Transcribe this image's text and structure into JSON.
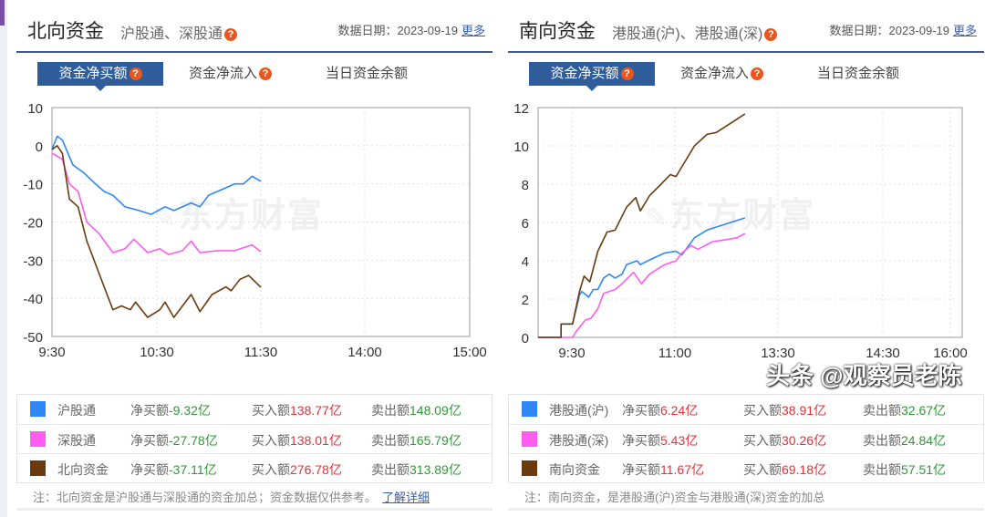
{
  "north": {
    "title": "北向资金",
    "subtitle": "沪股通、深股通",
    "date_label": "数据日期：",
    "date": "2023-09-19",
    "more": "更多",
    "tabs": [
      "资金净买额",
      "资金净流入",
      "当日资金余额"
    ],
    "legend": [
      {
        "name": "沪股通",
        "color": "#2f86f6",
        "net_label": "净买额",
        "net": "-9.32亿",
        "buy_label": "买入额",
        "buy": "138.77亿",
        "sell_label": "卖出额",
        "sell": "148.09亿",
        "net_positive": false
      },
      {
        "name": "深股通",
        "color": "#ff5cf0",
        "net_label": "净买额",
        "net": "-27.78亿",
        "buy_label": "买入额",
        "buy": "138.01亿",
        "sell_label": "卖出额",
        "sell": "165.79亿",
        "net_positive": false
      },
      {
        "name": "北向资金",
        "color": "#6b3a0c",
        "net_label": "净买额",
        "net": "-37.11亿",
        "buy_label": "买入额",
        "buy": "276.78亿",
        "sell_label": "卖出额",
        "sell": "313.89亿",
        "net_positive": false
      }
    ],
    "note": "注：北向资金是沪股通与深股通的资金加总；资金数据仅供参考。",
    "note_link": "了解详细",
    "watermark": "东方财富"
  },
  "south": {
    "title": "南向资金",
    "subtitle": "港股通(沪)、港股通(深)",
    "date_label": "数据日期：",
    "date": "2023-09-19",
    "more": "更多",
    "tabs": [
      "资金净买额",
      "资金净流入",
      "当日资金余额"
    ],
    "legend": [
      {
        "name": "港股通(沪)",
        "color": "#2f86f6",
        "net_label": "净买额",
        "net": "6.24亿",
        "buy_label": "买入额",
        "buy": "38.91亿",
        "sell_label": "卖出额",
        "sell": "32.67亿",
        "net_positive": true
      },
      {
        "name": "港股通(深)",
        "color": "#ff5cf0",
        "net_label": "净买额",
        "net": "5.43亿",
        "buy_label": "买入额",
        "buy": "30.26亿",
        "sell_label": "卖出额",
        "sell": "24.84亿",
        "net_positive": true
      },
      {
        "name": "南向资金",
        "color": "#6b3a0c",
        "net_label": "净买额",
        "net": "11.67亿",
        "buy_label": "买入额",
        "buy": "69.18亿",
        "sell_label": "卖出额",
        "sell": "57.51亿",
        "net_positive": true
      }
    ],
    "note": "注：南向资金，是港股通(沪)资金与港股通(深)资金的加总",
    "watermark": "东方财富"
  },
  "credit": "头条 @观察员老陈",
  "chart_data": [
    {
      "type": "line",
      "ylim": [
        -50,
        10
      ],
      "yticks": [
        "10",
        "0",
        "-10",
        "-20",
        "-30",
        "-40",
        "-50"
      ],
      "xticks": [
        "9:30",
        "10:30",
        "11:30",
        "14:00",
        "15:00"
      ],
      "grid": true,
      "series": [
        {
          "name": "沪股通",
          "color": "#2f86f6",
          "points": [
            [
              "9:30",
              -1
            ],
            [
              "9:33",
              2.5
            ],
            [
              "9:36",
              1.5
            ],
            [
              "9:42",
              -5
            ],
            [
              "9:48",
              -7
            ],
            [
              "9:55",
              -10
            ],
            [
              "10:00",
              -12
            ],
            [
              "10:05",
              -13
            ],
            [
              "10:12",
              -16
            ],
            [
              "10:20",
              -17
            ],
            [
              "10:27",
              -18
            ],
            [
              "10:35",
              -16
            ],
            [
              "10:40",
              -17
            ],
            [
              "10:50",
              -15
            ],
            [
              "10:55",
              -16
            ],
            [
              "11:00",
              -13
            ],
            [
              "11:05",
              -12
            ],
            [
              "11:15",
              -10
            ],
            [
              "11:20",
              -10
            ],
            [
              "11:25",
              -8
            ],
            [
              "11:30",
              -9.32
            ]
          ]
        },
        {
          "name": "深股通",
          "color": "#ff5cf0",
          "points": [
            [
              "9:30",
              -2
            ],
            [
              "9:36",
              -3.5
            ],
            [
              "9:40",
              -10
            ],
            [
              "9:45",
              -12
            ],
            [
              "9:50",
              -20
            ],
            [
              "9:57",
              -23
            ],
            [
              "10:05",
              -28
            ],
            [
              "10:12",
              -27
            ],
            [
              "10:17",
              -24.5
            ],
            [
              "10:25",
              -28
            ],
            [
              "10:32",
              -27
            ],
            [
              "10:37",
              -28.5
            ],
            [
              "10:45",
              -27.5
            ],
            [
              "10:50",
              -25
            ],
            [
              "10:55",
              -28
            ],
            [
              "11:05",
              -27.5
            ],
            [
              "11:15",
              -27.5
            ],
            [
              "11:25",
              -26
            ],
            [
              "11:30",
              -27.78
            ]
          ]
        },
        {
          "name": "北向资金",
          "color": "#6b3a0c",
          "points": [
            [
              "9:30",
              -1
            ],
            [
              "9:33",
              0
            ],
            [
              "9:36",
              -2
            ],
            [
              "9:40",
              -14
            ],
            [
              "9:45",
              -16
            ],
            [
              "9:50",
              -25
            ],
            [
              "9:55",
              -31
            ],
            [
              "10:00",
              -37
            ],
            [
              "10:05",
              -43
            ],
            [
              "10:10",
              -42
            ],
            [
              "10:15",
              -43
            ],
            [
              "10:18",
              -41
            ],
            [
              "10:25",
              -45
            ],
            [
              "10:32",
              -43
            ],
            [
              "10:35",
              -41
            ],
            [
              "10:40",
              -45
            ],
            [
              "10:45",
              -42
            ],
            [
              "10:50",
              -39
            ],
            [
              "10:55",
              -43.5
            ],
            [
              "11:02",
              -39
            ],
            [
              "11:10",
              -37
            ],
            [
              "11:13",
              -38
            ],
            [
              "11:18",
              -35
            ],
            [
              "11:23",
              -34
            ],
            [
              "11:30",
              -37.11
            ]
          ]
        }
      ]
    },
    {
      "type": "line",
      "ylim": [
        0,
        12
      ],
      "yticks": [
        "12",
        "10",
        "8",
        "6",
        "4",
        "2",
        "0"
      ],
      "xticks": [
        "9:30",
        "11:00",
        "13:30",
        "14:30",
        "16:00"
      ],
      "grid": true,
      "series": [
        {
          "name": "港股通(沪)",
          "color": "#2f86f6",
          "points": [
            [
              "9:00",
              0
            ],
            [
              "9:20",
              0
            ],
            [
              "9:20",
              0.7
            ],
            [
              "9:30",
              0.7
            ],
            [
              "9:36",
              2.2
            ],
            [
              "9:38",
              2.4
            ],
            [
              "9:44",
              2.1
            ],
            [
              "9:48",
              2.5
            ],
            [
              "9:52",
              2.5
            ],
            [
              "9:57",
              3.1
            ],
            [
              "10:02",
              3.3
            ],
            [
              "10:07",
              3.1
            ],
            [
              "10:13",
              3.3
            ],
            [
              "10:17",
              3.8
            ],
            [
              "10:26",
              4.0
            ],
            [
              "10:29",
              3.8
            ],
            [
              "10:39",
              4.1
            ],
            [
              "10:50",
              4.4
            ],
            [
              "11:00",
              4.5
            ],
            [
              "11:05",
              4.3
            ],
            [
              "11:16",
              5.2
            ],
            [
              "11:27",
              5.6
            ],
            [
              "11:37",
              5.8
            ],
            [
              "12:00",
              6.24
            ]
          ]
        },
        {
          "name": "港股通(深)",
          "color": "#ff5cf0",
          "points": [
            [
              "9:00",
              0
            ],
            [
              "9:30",
              0
            ],
            [
              "9:33",
              0.3
            ],
            [
              "9:41",
              0.9
            ],
            [
              "9:46",
              1.0
            ],
            [
              "9:52",
              1.5
            ],
            [
              "9:57",
              2.3
            ],
            [
              "10:02",
              2.4
            ],
            [
              "10:07",
              2.5
            ],
            [
              "10:13",
              2.8
            ],
            [
              "10:23",
              3.4
            ],
            [
              "10:30",
              2.8
            ],
            [
              "10:37",
              3.3
            ],
            [
              "10:50",
              3.8
            ],
            [
              "11:00",
              4.0
            ],
            [
              "11:05",
              4.4
            ],
            [
              "11:13",
              4.8
            ],
            [
              "11:19",
              4.6
            ],
            [
              "11:32",
              5.0
            ],
            [
              "11:43",
              5.1
            ],
            [
              "11:53",
              5.2
            ],
            [
              "12:00",
              5.43
            ]
          ]
        },
        {
          "name": "南向资金",
          "color": "#6b3a0c",
          "points": [
            [
              "9:00",
              0
            ],
            [
              "9:20",
              0
            ],
            [
              "9:20",
              0.7
            ],
            [
              "9:30",
              0.7
            ],
            [
              "9:36",
              2.4
            ],
            [
              "9:40",
              3.2
            ],
            [
              "9:45",
              2.9
            ],
            [
              "9:52",
              4.5
            ],
            [
              "10:00",
              5.5
            ],
            [
              "10:07",
              5.6
            ],
            [
              "10:17",
              6.8
            ],
            [
              "10:25",
              7.3
            ],
            [
              "10:29",
              6.6
            ],
            [
              "10:37",
              7.4
            ],
            [
              "10:47",
              8.0
            ],
            [
              "10:55",
              8.5
            ],
            [
              "11:00",
              8.4
            ],
            [
              "11:11",
              9.5
            ],
            [
              "11:16",
              10.0
            ],
            [
              "11:27",
              10.6
            ],
            [
              "11:35",
              10.7
            ],
            [
              "11:48",
              11.2
            ],
            [
              "12:00",
              11.67
            ]
          ]
        }
      ]
    }
  ]
}
